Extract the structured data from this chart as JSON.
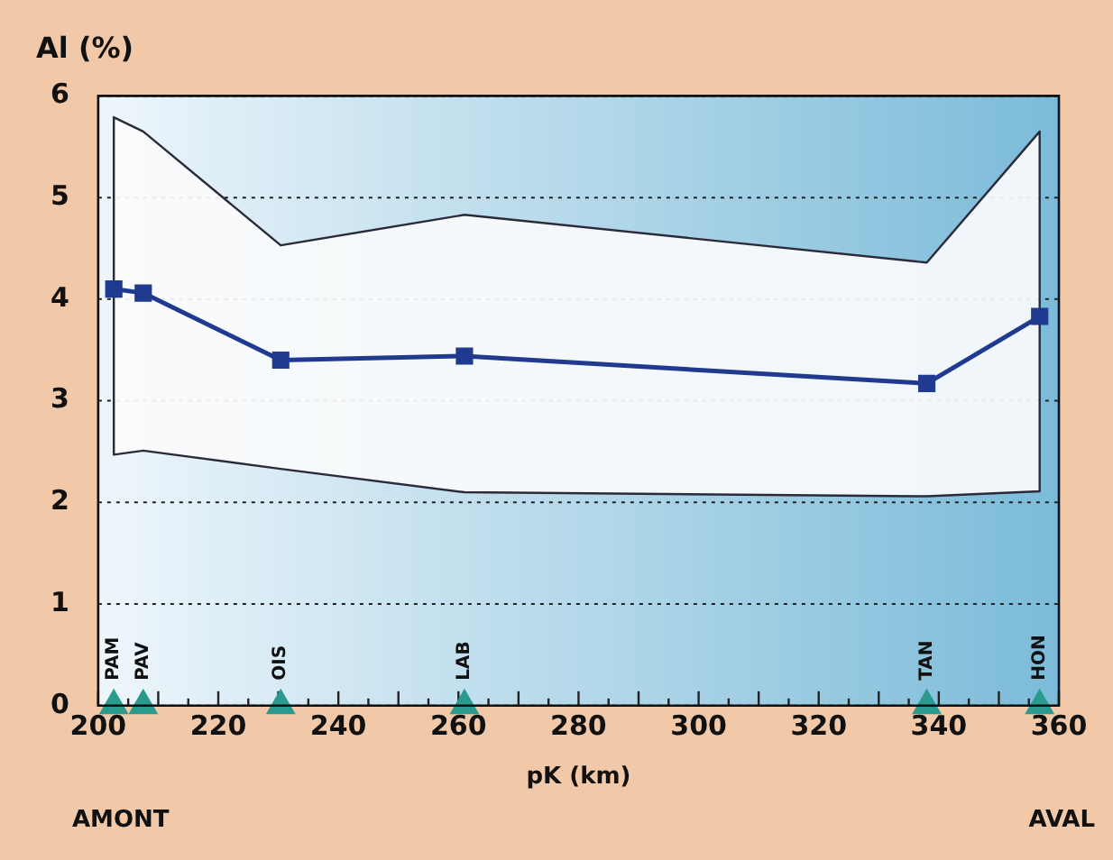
{
  "chart_data": {
    "type": "line",
    "title": "Al (%)",
    "xlabel": "pK (km)",
    "x": [
      202.6,
      207.5,
      230.4,
      261,
      338,
      356.8
    ],
    "series": [
      {
        "color": "#1f3a8f",
        "values": [
          4.1,
          4.06,
          3.4,
          3.44,
          3.17,
          3.83
        ],
        "lower": [
          2.47,
          2.51,
          2.33,
          2.1,
          2.06,
          2.11
        ],
        "upper": [
          5.79,
          5.65,
          4.53,
          4.83,
          4.36,
          5.65
        ]
      },
      {
        "type": "scatter",
        "marker": "triangle",
        "color": "#2a9a8e",
        "values": [
          0,
          0,
          0,
          0,
          0,
          0
        ],
        "value_labels": [
          "PAM",
          "PAV",
          "OIS",
          "LAB",
          "TAN",
          "HON"
        ]
      }
    ],
    "xlim": [
      200,
      360
    ],
    "xticks": [
      200,
      220,
      240,
      260,
      280,
      300,
      320,
      340,
      360
    ],
    "ylim": [
      0,
      6
    ],
    "yticks": [
      0,
      1,
      2,
      3,
      4,
      5,
      6
    ],
    "grid": "y",
    "legend": false,
    "marker": "square",
    "annotations": [
      "AMONT",
      "AVAL"
    ]
  }
}
